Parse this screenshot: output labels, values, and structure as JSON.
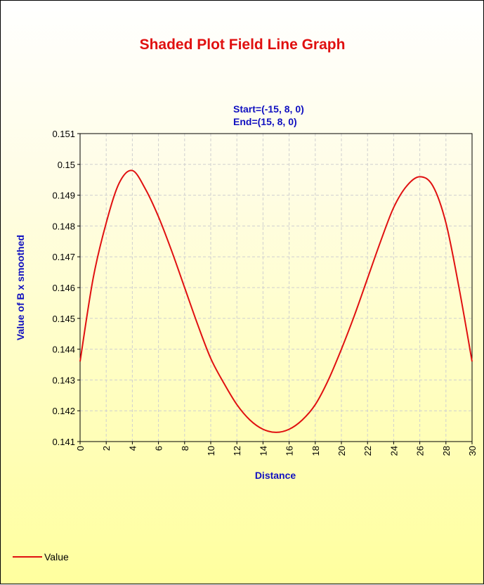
{
  "chart_data": {
    "type": "line",
    "title": "Shaded Plot Field Line Graph",
    "subtitle_lines": [
      "Start=(-15, 8, 0)",
      "End=(15, 8, 0)"
    ],
    "xlabel": "Distance",
    "ylabel": "Value of B x smoothed",
    "xlim": [
      0,
      30
    ],
    "ylim": [
      0.141,
      0.151
    ],
    "x_ticks": [
      "0",
      "2",
      "4",
      "6",
      "8",
      "10",
      "12",
      "14",
      "16",
      "18",
      "20",
      "22",
      "24",
      "26",
      "28",
      "30"
    ],
    "y_ticks": [
      "0.141",
      "0.142",
      "0.143",
      "0.144",
      "0.145",
      "0.146",
      "0.147",
      "0.148",
      "0.149",
      "0.15",
      "0.151"
    ],
    "grid": true,
    "legend_position": "bottom-left",
    "series": [
      {
        "name": "Value",
        "color": "#e01010",
        "x": [
          0,
          1,
          2,
          3,
          4,
          5,
          6,
          7,
          8,
          9,
          10,
          11,
          12,
          13,
          14,
          15,
          16,
          17,
          18,
          19,
          20,
          21,
          22,
          23,
          24,
          25,
          26,
          27,
          28,
          29,
          30
        ],
        "y": [
          0.1436,
          0.1463,
          0.1481,
          0.1494,
          0.1498,
          0.1492,
          0.1483,
          0.1472,
          0.146,
          0.1448,
          0.1437,
          0.1429,
          0.1422,
          0.1417,
          0.1414,
          0.1413,
          0.1414,
          0.1417,
          0.1422,
          0.143,
          0.144,
          0.1451,
          0.1463,
          0.1475,
          0.1486,
          0.1493,
          0.1496,
          0.1493,
          0.1481,
          0.146,
          0.1436
        ]
      }
    ]
  }
}
